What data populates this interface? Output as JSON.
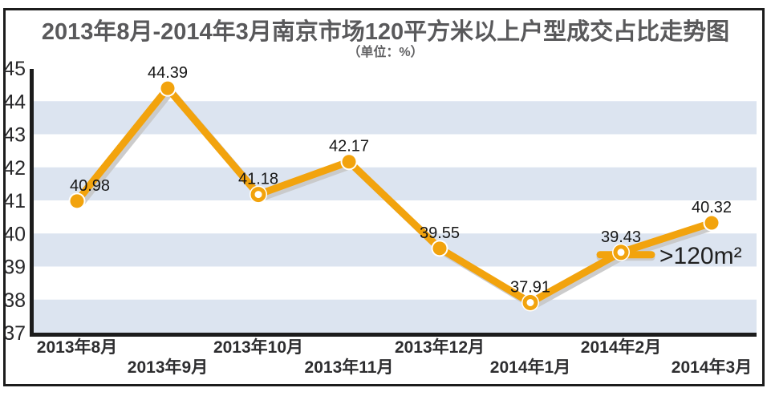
{
  "header": {
    "title": "2013年8月-2014年3月南京市场120平方米以上户型成交占比走势图",
    "subtitle": "（单位：%）"
  },
  "colors": {
    "line_orange": "#F2A30D",
    "line_shadow": "#C7C7C7",
    "stripe_blue": "#DCE4F0",
    "axis_black": "#1C1C1C",
    "title_gray": "#59595B",
    "ytick_text": "#28282A",
    "xlabel_text": "#2D2D2F",
    "point_label_text": "#161616",
    "legend_text": "#1F1F1F",
    "marker_ring_white": "#FFFFFF"
  },
  "chart_data": {
    "type": "line",
    "title": "2013年8月-2014年3月南京市场120平方米以上户型成交占比走势图",
    "subtitle": "（单位：%）",
    "unit": "%",
    "categories": [
      "2013年8月",
      "2013年9月",
      "2013年10月",
      "2013年11月",
      "2013年12月",
      "2014年1月",
      "2014年2月",
      "2014年3月"
    ],
    "series": [
      {
        "name": ">120m²",
        "color": "#F2A30D",
        "values": [
          40.98,
          44.39,
          41.18,
          42.17,
          39.55,
          37.91,
          39.43,
          40.32
        ],
        "point_labels": [
          "40.98",
          "44.39",
          "41.18",
          "42.17",
          "39.55",
          "37.91",
          "39.43",
          "40.32"
        ],
        "hollow_point_indices": [
          2,
          5,
          6
        ]
      }
    ],
    "ylim": [
      37,
      45
    ],
    "yticks": [
      45,
      44,
      43,
      42,
      41,
      40,
      39,
      38,
      37
    ],
    "stripe_bands": [
      [
        37,
        38
      ],
      [
        39,
        40
      ],
      [
        41,
        42
      ],
      [
        43,
        44
      ]
    ],
    "legend": {
      "label": ">120m²",
      "anchor_point_index": 6,
      "position": "inline-right-of-point"
    },
    "x_label_rows": "staggered",
    "grid": "stripe-bands-only",
    "ylabel": "",
    "xlabel": ""
  }
}
